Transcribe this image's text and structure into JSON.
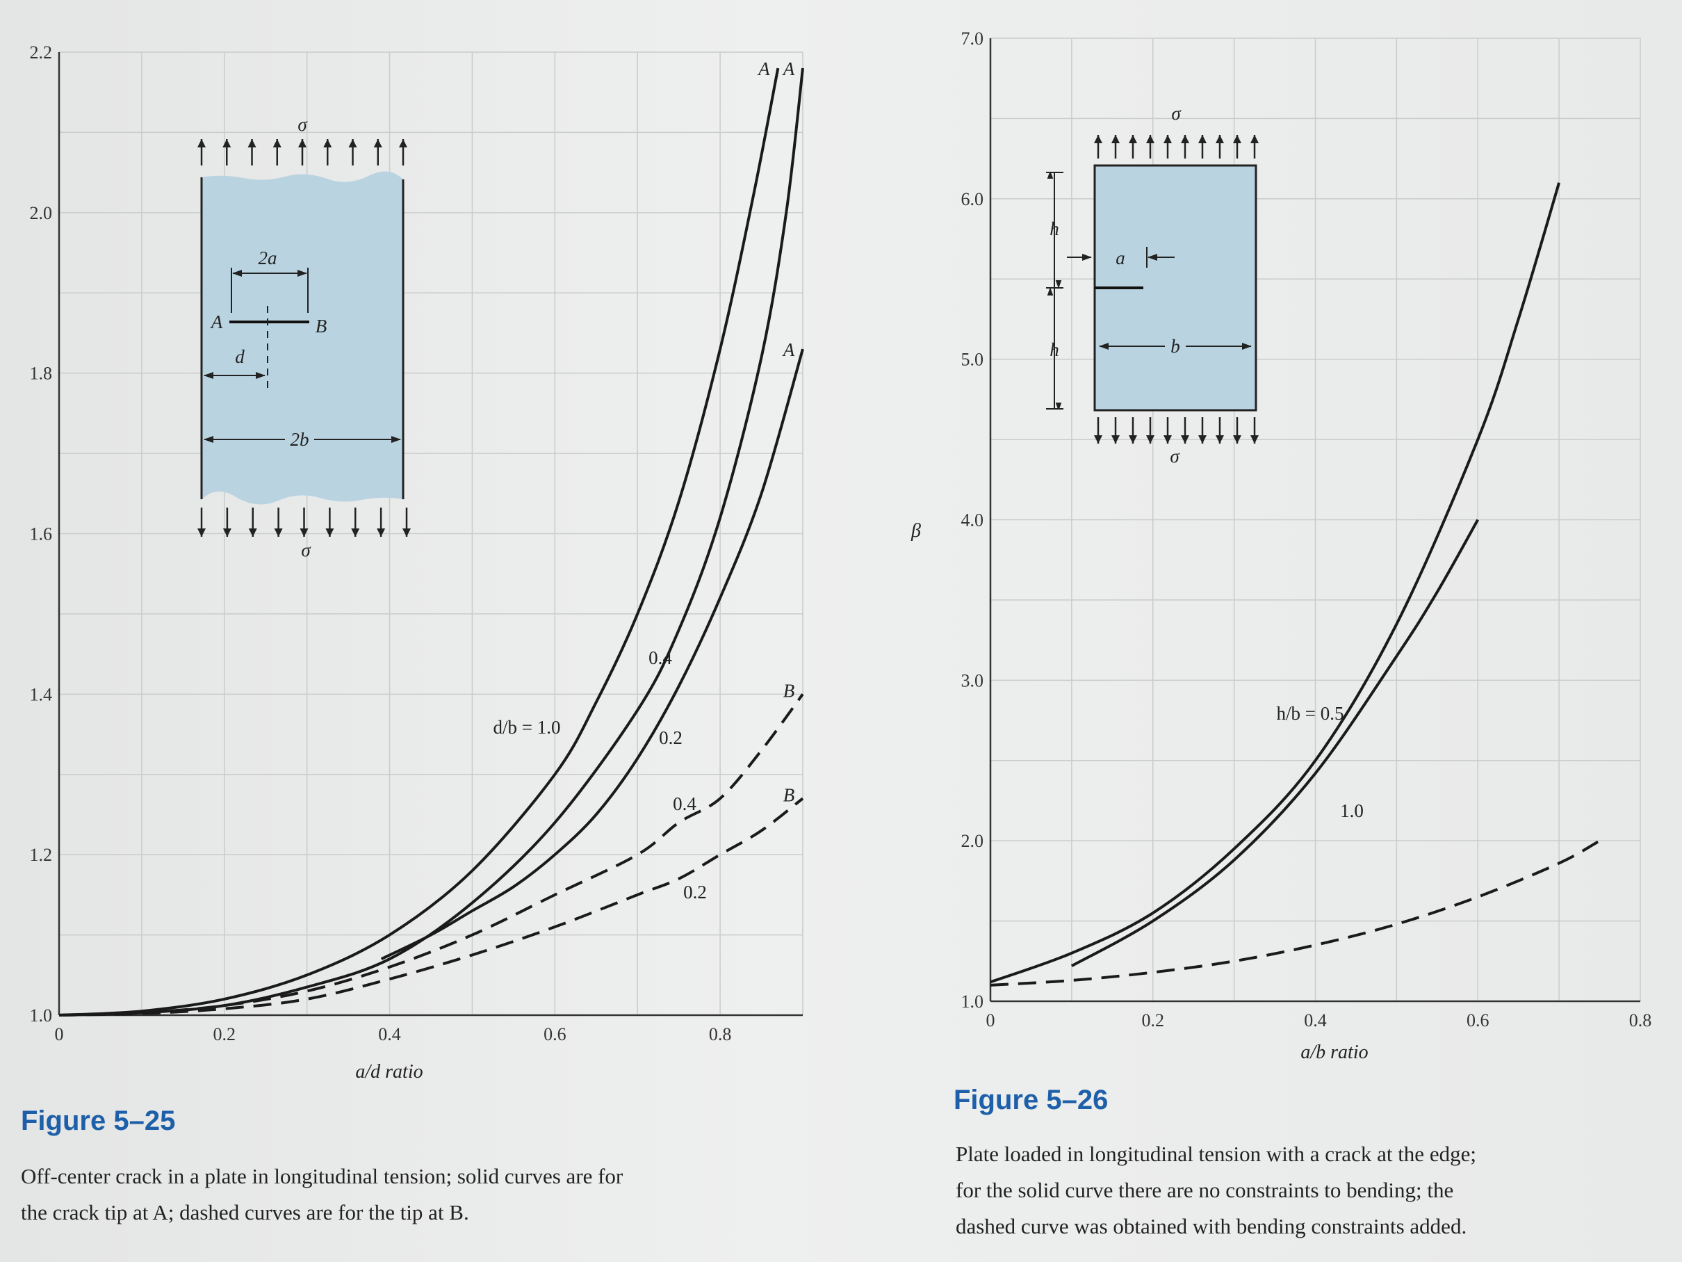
{
  "figures": [
    {
      "number": "Figure 5–25",
      "caption_line1": "Off-center crack in a plate in longitudinal tension; solid curves are for",
      "caption_line2": "the crack tip at A; dashed curves are for the tip at B."
    },
    {
      "number": "Figure 5–26",
      "caption_line1": "Plate loaded in longitudinal tension with a crack at the edge;",
      "caption_line2": "for the solid curve there are no constraints to bending; the",
      "caption_line3": "dashed curve was obtained with bending constraints added."
    }
  ],
  "colors": {
    "plate": "#b9d3e0",
    "figure_number": "#1d5fa8",
    "curve": "#1a1a1a",
    "grid": "#c9cccc"
  },
  "chart_data": [
    {
      "type": "line",
      "xlabel": "a/d ratio",
      "ylabel": "",
      "xlim": [
        0,
        0.9
      ],
      "ylim": [
        1.0,
        2.2
      ],
      "xticks": [
        0,
        0.2,
        0.4,
        0.6,
        0.8
      ],
      "yticks": [
        1.0,
        1.2,
        1.4,
        1.6,
        1.8,
        2.0,
        2.2
      ],
      "xtick_labels": [
        "0",
        "0.2",
        "0.4",
        "0.6",
        "0.8"
      ],
      "ytick_labels": [
        "1.0",
        "1.2",
        "1.4",
        "1.6",
        "1.8",
        "2.0",
        "2.2"
      ],
      "grid": true,
      "series": [
        {
          "name": "d/b = 1.0",
          "style": "solid",
          "end_label": "A",
          "x": [
            0,
            0.1,
            0.2,
            0.3,
            0.4,
            0.5,
            0.6,
            0.65,
            0.7,
            0.75,
            0.8,
            0.84,
            0.87
          ],
          "y": [
            1.0,
            1.005,
            1.02,
            1.05,
            1.1,
            1.18,
            1.3,
            1.39,
            1.5,
            1.64,
            1.83,
            2.02,
            2.18
          ]
        },
        {
          "name": "0.4",
          "style": "solid",
          "end_label": "A",
          "x": [
            0,
            0.1,
            0.2,
            0.3,
            0.4,
            0.5,
            0.6,
            0.7,
            0.75,
            0.8,
            0.85,
            0.88,
            0.9
          ],
          "y": [
            1.0,
            1.003,
            1.012,
            1.035,
            1.07,
            1.14,
            1.24,
            1.38,
            1.48,
            1.62,
            1.82,
            2.0,
            2.18
          ]
        },
        {
          "name": "0.2",
          "style": "solid",
          "end_label": "A",
          "x": [
            0.39,
            0.45,
            0.5,
            0.55,
            0.6,
            0.65,
            0.7,
            0.75,
            0.8,
            0.85,
            0.9
          ],
          "y": [
            1.07,
            1.1,
            1.13,
            1.16,
            1.2,
            1.25,
            1.32,
            1.41,
            1.52,
            1.65,
            1.83
          ]
        },
        {
          "name": "0.4",
          "style": "dashed",
          "end_label": "B",
          "x": [
            0,
            0.1,
            0.2,
            0.3,
            0.4,
            0.5,
            0.6,
            0.7,
            0.75,
            0.8,
            0.85,
            0.9
          ],
          "y": [
            1.0,
            1.003,
            1.012,
            1.03,
            1.06,
            1.1,
            1.15,
            1.2,
            1.24,
            1.27,
            1.33,
            1.4
          ]
        },
        {
          "name": "0.2",
          "style": "dashed",
          "end_label": "B",
          "x": [
            0,
            0.1,
            0.2,
            0.3,
            0.4,
            0.5,
            0.6,
            0.7,
            0.75,
            0.8,
            0.85,
            0.9
          ],
          "y": [
            1.0,
            1.002,
            1.008,
            1.02,
            1.045,
            1.075,
            1.11,
            1.15,
            1.17,
            1.2,
            1.23,
            1.27
          ]
        }
      ],
      "inset": {
        "sigma_top": "σ",
        "sigma_bottom": "σ",
        "crack_length": "2a",
        "tip_a": "A",
        "tip_b": "B",
        "offset": "d",
        "width": "2b"
      }
    },
    {
      "type": "line",
      "xlabel": "a/b ratio",
      "ylabel": "β",
      "xlim": [
        0,
        0.8
      ],
      "ylim": [
        1.0,
        7.0
      ],
      "xticks": [
        0,
        0.2,
        0.4,
        0.6,
        0.8
      ],
      "yticks": [
        1.0,
        2.0,
        3.0,
        4.0,
        5.0,
        6.0,
        7.0
      ],
      "xtick_labels": [
        "0",
        "0.2",
        "0.4",
        "0.6",
        "0.8"
      ],
      "ytick_labels": [
        "1.0",
        "2.0",
        "3.0",
        "4.0",
        "5.0",
        "6.0",
        "7.0"
      ],
      "grid": true,
      "series": [
        {
          "name": "h/b = 0.5",
          "style": "solid",
          "x": [
            0,
            0.1,
            0.2,
            0.3,
            0.4,
            0.5,
            0.6,
            0.65,
            0.7
          ],
          "y": [
            1.12,
            1.3,
            1.55,
            1.95,
            2.5,
            3.35,
            4.5,
            5.25,
            6.1
          ]
        },
        {
          "name": "1.0",
          "style": "solid",
          "x": [
            0.1,
            0.2,
            0.3,
            0.4,
            0.5,
            0.55,
            0.6
          ],
          "y": [
            1.22,
            1.5,
            1.88,
            2.42,
            3.15,
            3.55,
            4.0
          ]
        },
        {
          "name": "",
          "style": "dashed",
          "x": [
            0,
            0.1,
            0.2,
            0.3,
            0.4,
            0.5,
            0.6,
            0.7,
            0.75
          ],
          "y": [
            1.1,
            1.13,
            1.18,
            1.25,
            1.35,
            1.48,
            1.65,
            1.86,
            2.0
          ]
        }
      ],
      "inset": {
        "sigma_top": "σ",
        "sigma_bottom": "σ",
        "height_top": "h",
        "height_bottom": "h",
        "crack_length": "a",
        "width": "b"
      }
    }
  ]
}
